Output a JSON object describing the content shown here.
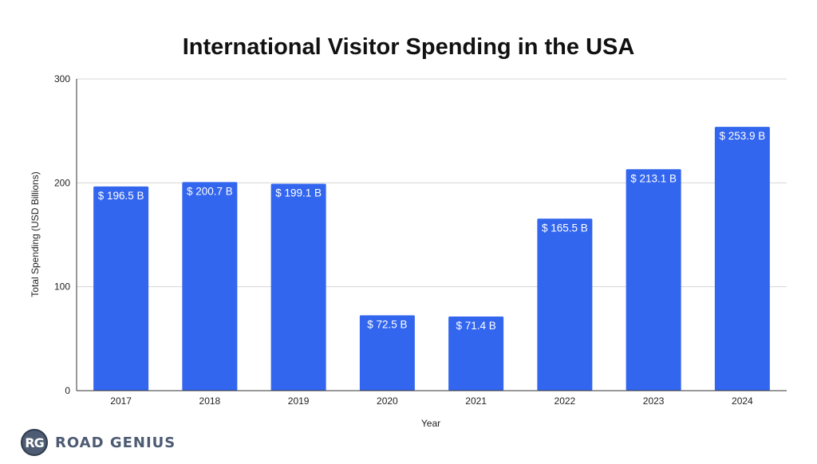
{
  "chart_data": {
    "type": "bar",
    "title": "International Visitor Spending in the USA",
    "xlabel": "Year",
    "ylabel": "Total Spending (USD Billions)",
    "categories": [
      "2017",
      "2018",
      "2019",
      "2020",
      "2021",
      "2022",
      "2023",
      "2024"
    ],
    "values": [
      196.5,
      200.7,
      199.1,
      72.5,
      71.4,
      165.5,
      213.1,
      253.9
    ],
    "data_labels": [
      "$ 196.5 B",
      "$ 200.7 B",
      "$ 199.1 B",
      "$ 72.5 B",
      "$ 71.4 B",
      "$ 165.5 B",
      "$ 213.1 B",
      "$ 253.9 B"
    ],
    "ylim": [
      0,
      300
    ],
    "yticks": [
      0,
      100,
      200,
      300
    ],
    "grid": true,
    "bar_color": "#3366ee"
  },
  "brand": {
    "logo_text": "RG",
    "name": "ROAD GENIUS",
    "logo_color": "#4d5b73"
  }
}
